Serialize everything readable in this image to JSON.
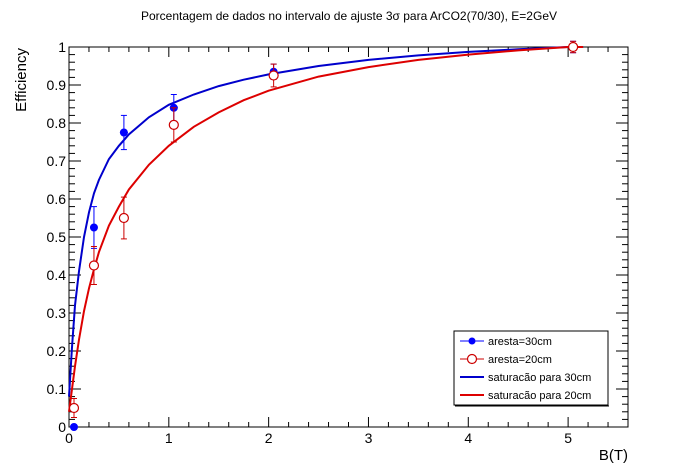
{
  "chart_data": {
    "type": "scatter",
    "title": "Porcentagem de dados no intervalo de ajuste 3σ  para ArCO2(70/30), E=2GeV",
    "xlabel": "B(T)",
    "ylabel": "Efficiency",
    "xlim": [
      0,
      5.6
    ],
    "ylim": [
      0,
      1.0
    ],
    "x_ticks": [
      "0",
      "1",
      "2",
      "3",
      "4",
      "5"
    ],
    "y_ticks": [
      "0",
      "0.1",
      "0.2",
      "0.3",
      "0.4",
      "0.5",
      "0.6",
      "0.7",
      "0.8",
      "0.9",
      "1"
    ],
    "legend_position": "bottom-right",
    "grid": false,
    "series": [
      {
        "name": "aresta=30cm",
        "kind": "points",
        "marker": "filled-circle",
        "color": "#0000ff",
        "x": [
          0.05,
          0.25,
          0.55,
          1.05,
          2.05,
          5.05
        ],
        "y": [
          0.0,
          0.525,
          0.775,
          0.84,
          0.935,
          1.0
        ],
        "y_error": [
          0.0,
          0.055,
          0.045,
          0.035,
          0.02,
          0.015
        ],
        "x_error": [
          0.0,
          0.03,
          0.04,
          0.04,
          0.03,
          0.04
        ]
      },
      {
        "name": "aresta=20cm",
        "kind": "points",
        "marker": "open-circle",
        "color": "#cc0000",
        "x": [
          0.05,
          0.25,
          0.55,
          1.05,
          2.05,
          5.05
        ],
        "y": [
          0.05,
          0.425,
          0.55,
          0.795,
          0.925,
          1.0
        ],
        "y_error": [
          0.025,
          0.05,
          0.055,
          0.045,
          0.03,
          0.015
        ],
        "x_error": [
          0.0,
          0.02,
          0.0,
          0.02,
          0.02,
          0.02
        ]
      },
      {
        "name": "saturacão para 30cm",
        "kind": "line",
        "color": "#0000cc",
        "x": [
          0.0,
          0.03,
          0.06,
          0.1,
          0.15,
          0.2,
          0.25,
          0.3,
          0.4,
          0.5,
          0.6,
          0.8,
          1.0,
          1.25,
          1.5,
          1.75,
          2.0,
          2.5,
          3.0,
          3.5,
          4.0,
          4.5,
          5.0,
          5.15
        ],
        "y": [
          0.08,
          0.21,
          0.32,
          0.41,
          0.5,
          0.565,
          0.615,
          0.65,
          0.705,
          0.74,
          0.77,
          0.815,
          0.848,
          0.875,
          0.897,
          0.914,
          0.928,
          0.95,
          0.966,
          0.978,
          0.987,
          0.994,
          1.0,
          1.001
        ]
      },
      {
        "name": "saturacão para 20cm",
        "kind": "line",
        "color": "#dd0000",
        "x": [
          0.0,
          0.03,
          0.06,
          0.1,
          0.15,
          0.2,
          0.25,
          0.3,
          0.4,
          0.5,
          0.6,
          0.8,
          1.0,
          1.25,
          1.5,
          1.75,
          2.0,
          2.5,
          3.0,
          3.5,
          4.0,
          4.5,
          5.0,
          5.15
        ],
        "y": [
          0.04,
          0.1,
          0.16,
          0.23,
          0.305,
          0.365,
          0.415,
          0.46,
          0.53,
          0.58,
          0.625,
          0.69,
          0.74,
          0.79,
          0.828,
          0.86,
          0.885,
          0.922,
          0.947,
          0.966,
          0.98,
          0.991,
          1.0,
          1.002
        ]
      }
    ]
  }
}
